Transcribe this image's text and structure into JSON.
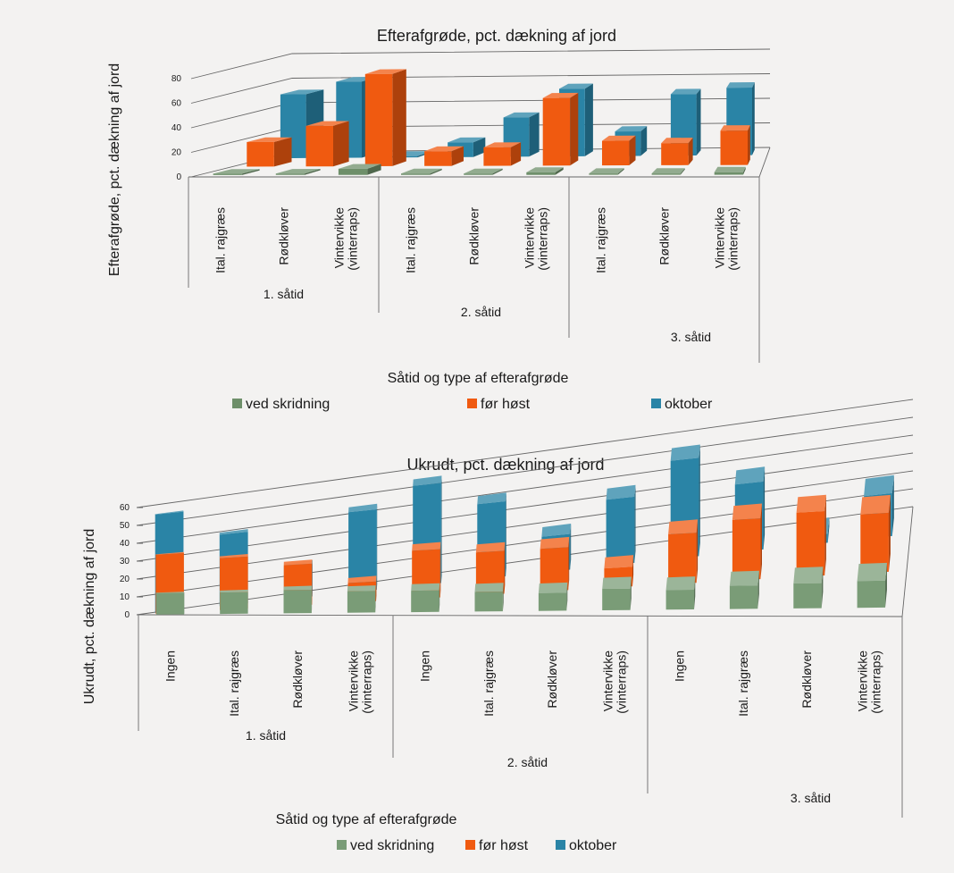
{
  "chart_data": [
    {
      "type": "bar",
      "title": "Efterafgrøde, pct. dækning af jord",
      "xlabel": "Såtid og type af efterafgrøde",
      "ylabel": "Efterafgrøde, pct. dækning af jord",
      "ylim": [
        0,
        80
      ],
      "yticks": [
        "0",
        "20",
        "40",
        "60",
        "80"
      ],
      "groups": [
        {
          "label": "1. såtid",
          "categories": [
            [
              "Ital. rajgræs"
            ],
            [
              "Rødkløver"
            ],
            [
              "Vintervikke",
              "(vinterraps)"
            ]
          ]
        },
        {
          "label": "2. såtid",
          "categories": [
            [
              "Ital. rajgræs"
            ],
            [
              "Rødkløver"
            ],
            [
              "Vintervikke",
              "(vinterraps)"
            ]
          ]
        },
        {
          "label": "3. såtid",
          "categories": [
            [
              "Ital. rajgræs"
            ],
            [
              "Rødkløver"
            ],
            [
              "Vintervikke",
              "(vinterraps)"
            ]
          ]
        }
      ],
      "series": [
        {
          "name": "ved skridning",
          "color": "#6e8f6a",
          "values": [
            1,
            1,
            5,
            1,
            1,
            2,
            1,
            1,
            2
          ]
        },
        {
          "name": "før høst",
          "color": "#f05a10",
          "values": [
            20,
            33,
            75,
            12,
            15,
            55,
            20,
            18,
            28
          ]
        },
        {
          "name": "oktober",
          "color": "#2a84a6",
          "values": [
            52,
            62,
            0,
            12,
            32,
            55,
            20,
            50,
            55
          ]
        }
      ],
      "legend_placement": "bottom",
      "grid": true
    },
    {
      "type": "bar",
      "title": "Ukrudt, pct. dækning af jord",
      "xlabel": "Såtid og type af efterafgrøde",
      "ylabel": "Ukrudt, pct. dækning af jord",
      "ylim": [
        0,
        60
      ],
      "yticks": [
        "0",
        "10",
        "20",
        "30",
        "40",
        "50",
        "60"
      ],
      "groups": [
        {
          "label": "1. såtid",
          "categories": [
            [
              "Ingen"
            ],
            [
              "Ital. rajgræs"
            ],
            [
              "Rødkløver"
            ],
            [
              "Vintervikke",
              "(vinterraps)"
            ]
          ]
        },
        {
          "label": "2. såtid",
          "categories": [
            [
              "Ingen"
            ],
            [
              "Ital. rajgræs"
            ],
            [
              "Rødkløver"
            ],
            [
              "Vintervikke",
              "(vinterraps)"
            ]
          ]
        },
        {
          "label": "3. såtid",
          "categories": [
            [
              "Ingen"
            ],
            [
              "Ital. rajgræs"
            ],
            [
              "Rødkløver"
            ],
            [
              "Vintervikke",
              "(vinterraps)"
            ]
          ]
        }
      ],
      "series": [
        {
          "name": "ved skridning",
          "color": "#7a9c77",
          "values": [
            12,
            12,
            13,
            12,
            12,
            11,
            10,
            12,
            11,
            13,
            14,
            15
          ]
        },
        {
          "name": "før høst",
          "color": "#f05a10",
          "values": [
            33,
            29,
            23,
            11,
            27,
            24,
            24,
            11,
            28,
            34,
            36,
            33
          ]
        },
        {
          "name": "oktober",
          "color": "#2a84a6",
          "values": [
            55,
            40,
            18,
            45,
            56,
            42,
            20,
            37,
            55,
            38,
            5,
            24
          ]
        }
      ],
      "legend_placement": "bottom",
      "grid": true
    }
  ]
}
